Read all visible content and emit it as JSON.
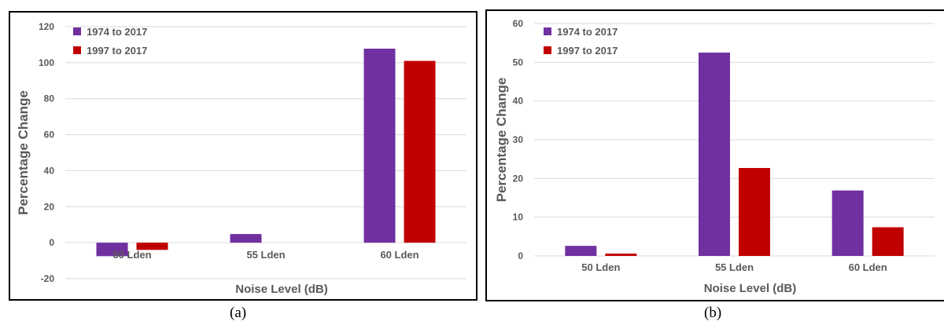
{
  "colors": {
    "series1": "#7030A0",
    "series2": "#C00000",
    "grid": "#d9d9d9",
    "text": "#595959"
  },
  "captions": {
    "a": "(a)",
    "b": "(b)"
  },
  "chart_data": [
    {
      "type": "bar",
      "panel": "a",
      "categories": [
        "50 Lden",
        "55 Lden",
        "60 Lden"
      ],
      "series": [
        {
          "name": "1974 to 2017",
          "values": [
            -7.5,
            4.8,
            107.8
          ]
        },
        {
          "name": "1997 to 2017",
          "values": [
            -4.0,
            0,
            101.0
          ]
        }
      ],
      "xlabel": "Noise Level (dB)",
      "ylabel": "Percentage Change",
      "ylim": [
        -20,
        120
      ],
      "yticks": [
        -20,
        0,
        20,
        40,
        60,
        80,
        100,
        120
      ],
      "grid": true,
      "legend": "top-left"
    },
    {
      "type": "bar",
      "panel": "b",
      "categories": [
        "50 Lden",
        "55 Lden",
        "60 Lden"
      ],
      "series": [
        {
          "name": "1974 to 2017",
          "values": [
            2.6,
            52.5,
            16.9
          ]
        },
        {
          "name": "1997 to 2017",
          "values": [
            0.6,
            22.7,
            7.4
          ]
        }
      ],
      "xlabel": "Noise Level (dB)",
      "ylabel": "Percentage Change",
      "ylim": [
        0,
        60
      ],
      "yticks": [
        0,
        10,
        20,
        30,
        40,
        50,
        60
      ],
      "grid": true,
      "legend": "top-left"
    }
  ]
}
